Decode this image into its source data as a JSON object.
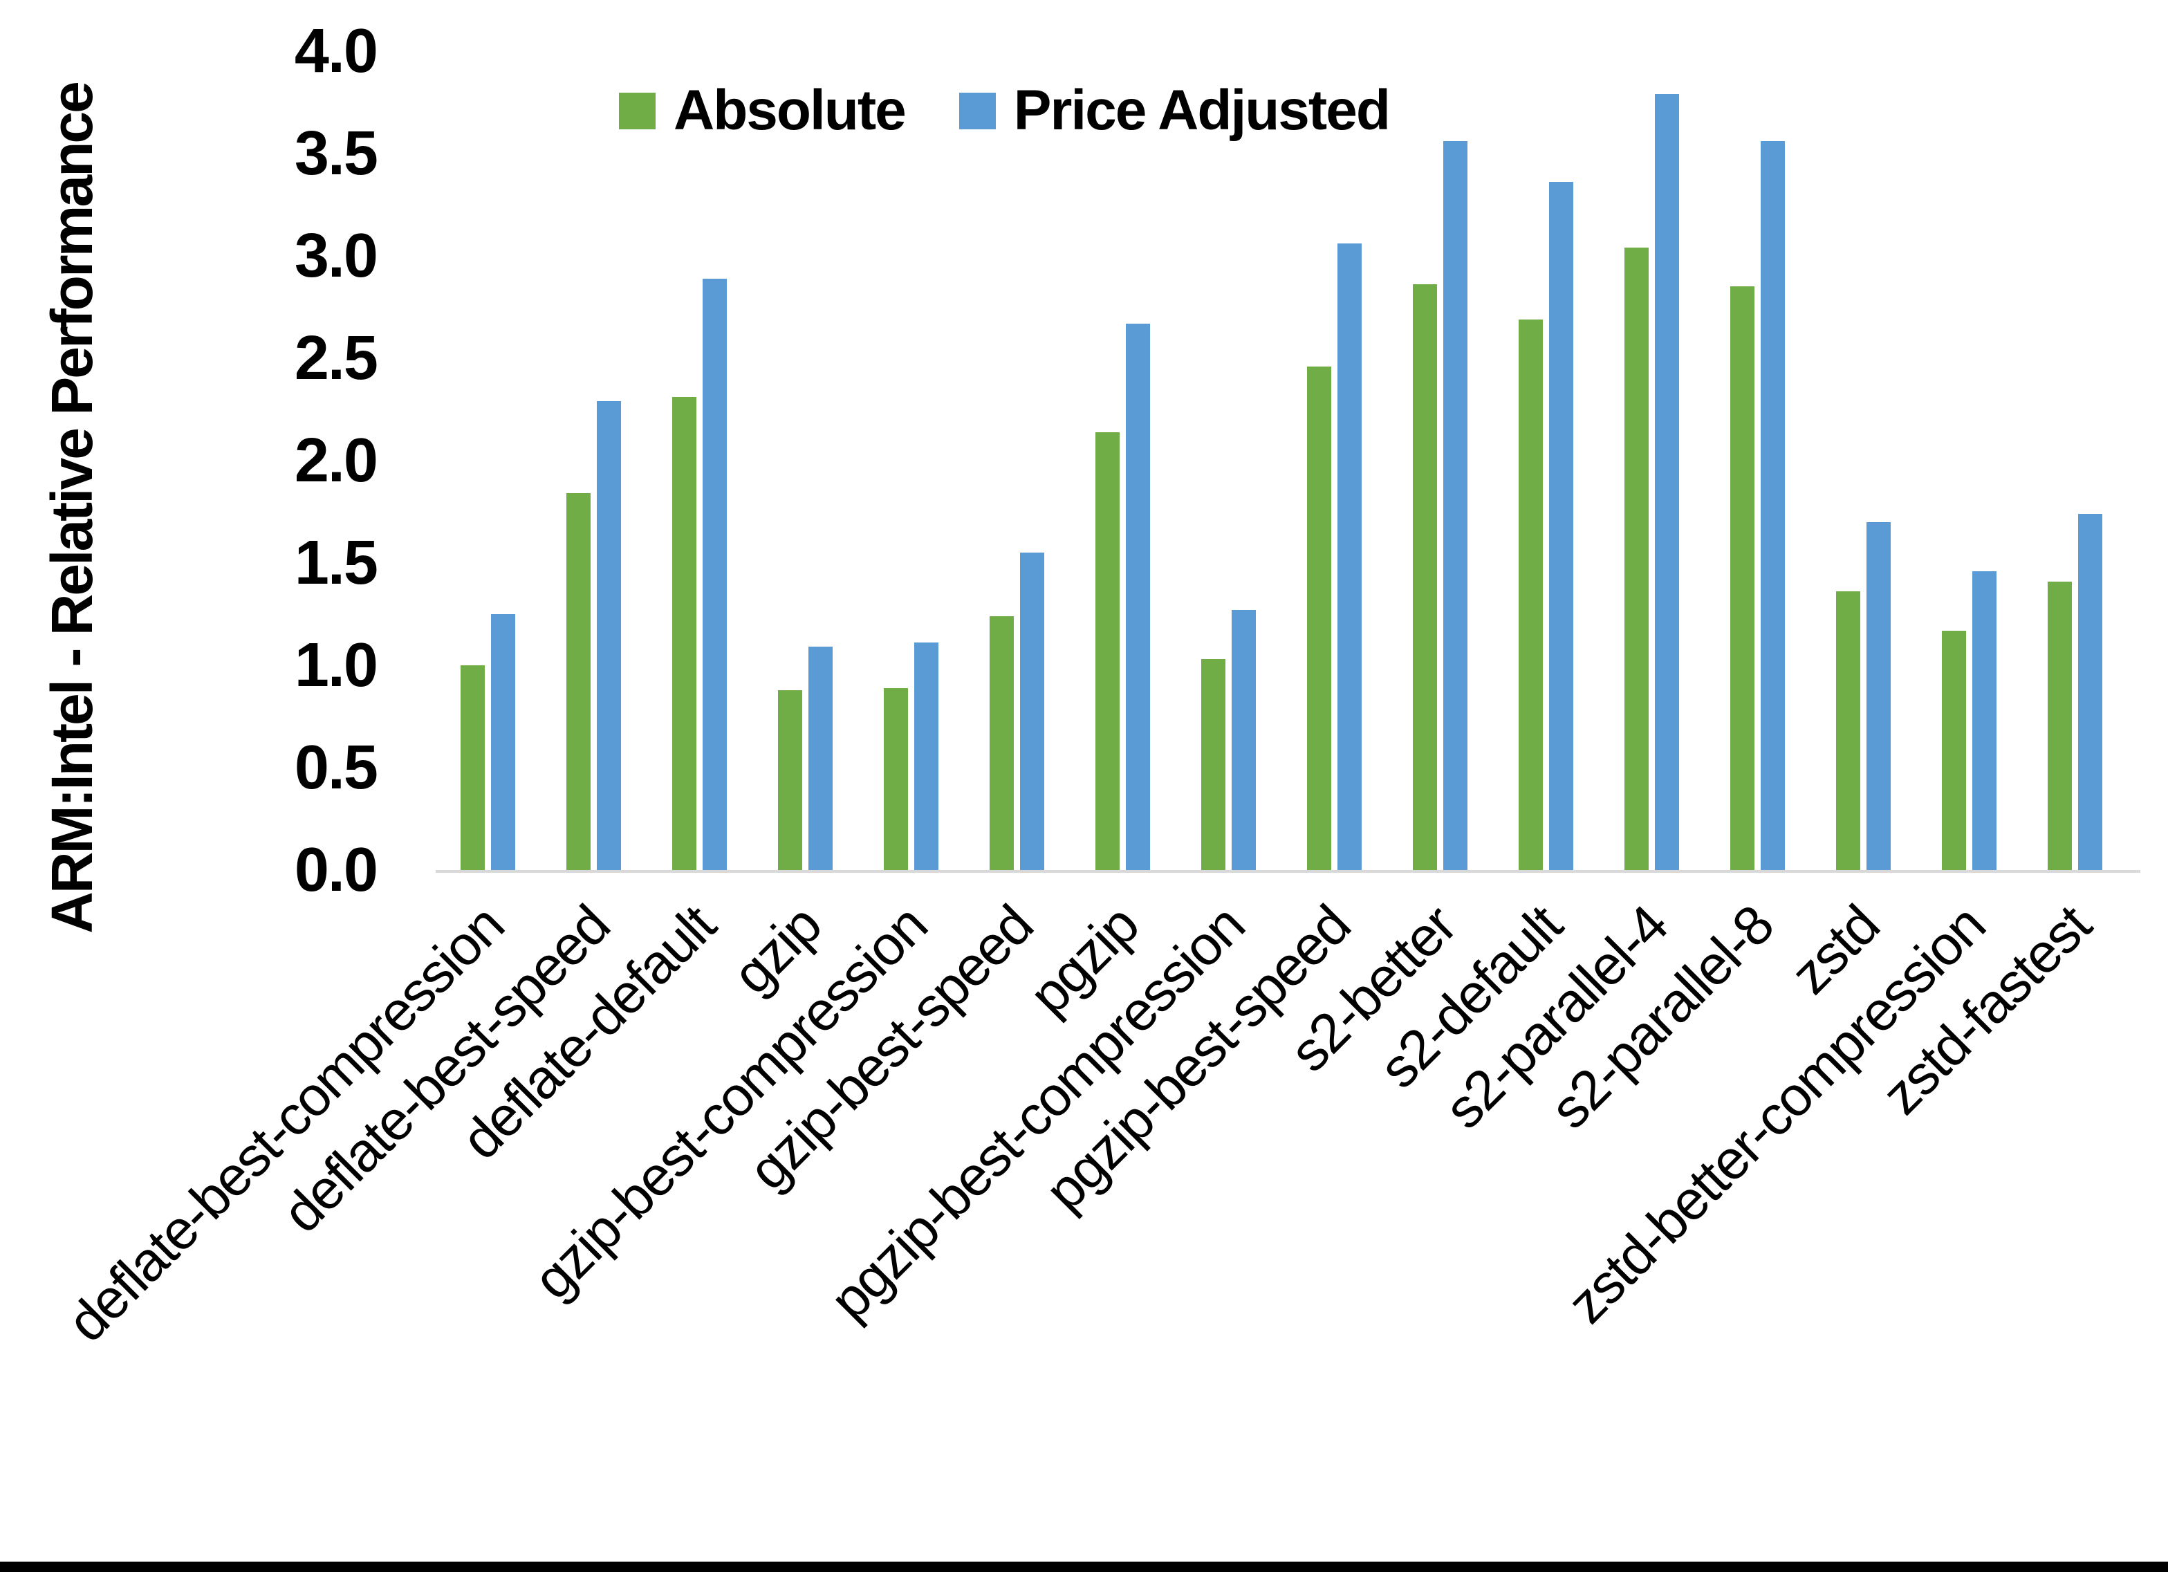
{
  "chart_data": {
    "type": "bar",
    "title": "",
    "xlabel": "",
    "ylabel": "ARM:Intel - Relative Performance",
    "ylim": [
      0.0,
      4.0
    ],
    "ytick_step": 0.5,
    "yticks": [
      "0.0",
      "0.5",
      "1.0",
      "1.5",
      "2.0",
      "2.5",
      "3.0",
      "3.5",
      "4.0"
    ],
    "grid": false,
    "legend_position": "top-center",
    "categories": [
      "deflate-best-compression",
      "deflate-best-speed",
      "deflate-default",
      "gzip",
      "gzip-best-compression",
      "gzip-best-speed",
      "pgzip",
      "pgzip-best-compression",
      "pgzip-best-speed",
      "s2-better",
      "s2-default",
      "s2-parallel-4",
      "s2-parallel-8",
      "zstd",
      "zstd-better-compression",
      "zstd-fastest"
    ],
    "series": [
      {
        "name": "Absolute",
        "color": "#70AD47",
        "values": [
          1.0,
          1.84,
          2.31,
          0.88,
          0.89,
          1.24,
          2.14,
          1.03,
          2.46,
          2.86,
          2.69,
          3.04,
          2.85,
          1.36,
          1.17,
          1.41
        ]
      },
      {
        "name": "Price Adjusted",
        "color": "#5B9BD5",
        "values": [
          1.25,
          2.29,
          2.89,
          1.09,
          1.11,
          1.55,
          2.67,
          1.27,
          3.06,
          3.56,
          3.36,
          3.79,
          3.56,
          1.7,
          1.46,
          1.74
        ]
      }
    ]
  },
  "colors": {
    "background": "#FFFFFF",
    "axis_line": "#D9D9D9",
    "text": "#000000",
    "bottom_border": "#000000"
  }
}
